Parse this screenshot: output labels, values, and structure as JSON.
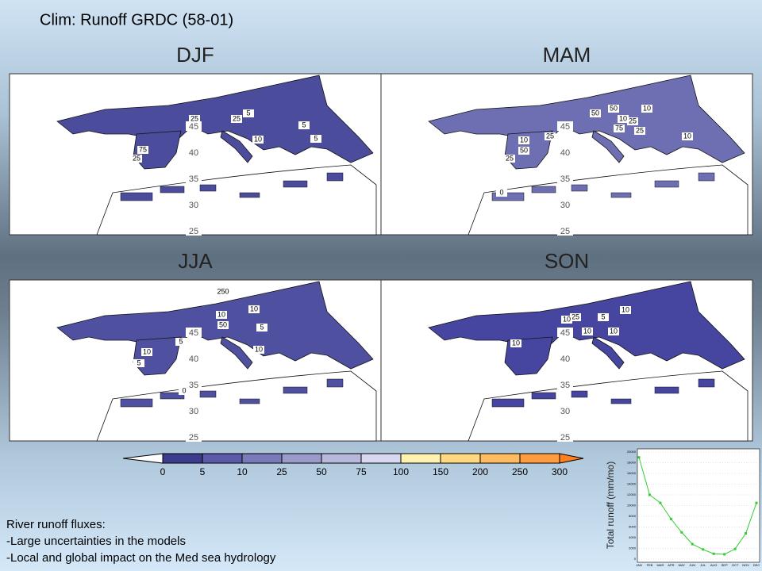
{
  "title": "Clim: Runoff GRDC (58-01)",
  "maps": [
    {
      "season": "DJF",
      "contour_labels": [
        5,
        25,
        25,
        10,
        5,
        5,
        75,
        25
      ]
    },
    {
      "season": "MAM",
      "contour_labels": [
        50,
        10,
        50,
        10,
        25,
        75,
        25,
        10,
        10,
        25,
        50,
        25,
        0
      ]
    },
    {
      "season": "JJA",
      "contour_labels": [
        250,
        10,
        10,
        50,
        5,
        5,
        10,
        10,
        5,
        0
      ]
    },
    {
      "season": "SON",
      "contour_labels": [
        10,
        5,
        25,
        10,
        10,
        10,
        10
      ]
    }
  ],
  "latitude_labels": [
    45,
    40,
    35,
    30,
    25
  ],
  "colorbar": {
    "ticks": [
      0,
      5,
      10,
      25,
      50,
      75,
      100,
      150,
      200,
      250,
      300
    ],
    "colors": [
      "#ffffff",
      "#3c3c8e",
      "#5a5aa8",
      "#7a7abb",
      "#9a9acb",
      "#b8b8dd",
      "#d8d8f2",
      "#fff2b0",
      "#ffd880",
      "#ffbb60",
      "#ff9c40",
      "#ff7f1e"
    ]
  },
  "notes": [
    "River runoff fluxes:",
    "-Large uncertainties in the models",
    "-Local and global impact on the Med sea hydrology"
  ],
  "chart_data": {
    "type": "line",
    "y_label": "Total runoff (mm/mo)",
    "categories": [
      "JAN",
      "FEB",
      "MAR",
      "APR",
      "MAY",
      "JUN",
      "JUL",
      "AUG",
      "SEP",
      "OCT",
      "NOV",
      "DEC"
    ],
    "series": [
      {
        "color": "#33cc33",
        "values": [
          19000,
          12000,
          10500,
          7500,
          5000,
          2800,
          1800,
          1000,
          900,
          1900,
          4800,
          10500
        ]
      }
    ],
    "ylim": [
      0,
      20000
    ],
    "yticks": [
      0,
      2000,
      4000,
      6000,
      8000,
      10000,
      12000,
      14000,
      16000,
      18000,
      20000
    ],
    "grid": true
  }
}
